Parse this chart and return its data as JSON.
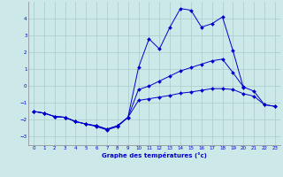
{
  "xlabel": "Graphe des températures (°c)",
  "background_color": "#cce8e8",
  "grid_color": "#aacccc",
  "line_color": "#0000cc",
  "curve1_x": [
    0,
    1,
    2,
    3,
    4,
    5,
    6,
    7,
    8,
    9,
    10,
    11,
    12,
    13,
    14,
    15,
    16,
    17,
    18,
    19,
    20
  ],
  "curve1_y": [
    -1.5,
    -1.6,
    -1.8,
    -1.85,
    -2.1,
    -2.25,
    -2.4,
    -2.6,
    -2.4,
    -1.85,
    1.1,
    2.8,
    2.2,
    3.5,
    4.6,
    4.5,
    3.5,
    3.7,
    4.1,
    2.1,
    -0.1
  ],
  "curve2_x": [
    0,
    1,
    2,
    3,
    4,
    5,
    6,
    7,
    8,
    9,
    10,
    11,
    12,
    13,
    14,
    15,
    16,
    17,
    18,
    19,
    20,
    21,
    22,
    23
  ],
  "curve2_y": [
    -1.5,
    -1.6,
    -1.8,
    -1.85,
    -2.1,
    -2.25,
    -2.35,
    -2.55,
    -2.35,
    -1.85,
    -0.2,
    0.0,
    0.3,
    0.6,
    0.9,
    1.1,
    1.3,
    1.5,
    1.6,
    0.8,
    -0.05,
    -0.3,
    -1.1,
    -1.2
  ],
  "curve3_x": [
    0,
    1,
    2,
    3,
    4,
    5,
    6,
    7,
    8,
    9,
    10,
    11,
    12,
    13,
    14,
    15,
    16,
    17,
    18,
    19,
    20,
    21,
    22,
    23
  ],
  "curve3_y": [
    -1.5,
    -1.6,
    -1.8,
    -1.85,
    -2.1,
    -2.25,
    -2.35,
    -2.55,
    -2.35,
    -1.85,
    -0.85,
    -0.75,
    -0.65,
    -0.55,
    -0.42,
    -0.35,
    -0.25,
    -0.15,
    -0.15,
    -0.2,
    -0.45,
    -0.6,
    -1.1,
    -1.2
  ],
  "ylim": [
    -3.5,
    5.0
  ],
  "xlim": [
    -0.5,
    23.5
  ],
  "yticks": [
    -3,
    -2,
    -1,
    0,
    1,
    2,
    3,
    4
  ],
  "xticks": [
    0,
    1,
    2,
    3,
    4,
    5,
    6,
    7,
    8,
    9,
    10,
    11,
    12,
    13,
    14,
    15,
    16,
    17,
    18,
    19,
    20,
    21,
    22,
    23
  ]
}
